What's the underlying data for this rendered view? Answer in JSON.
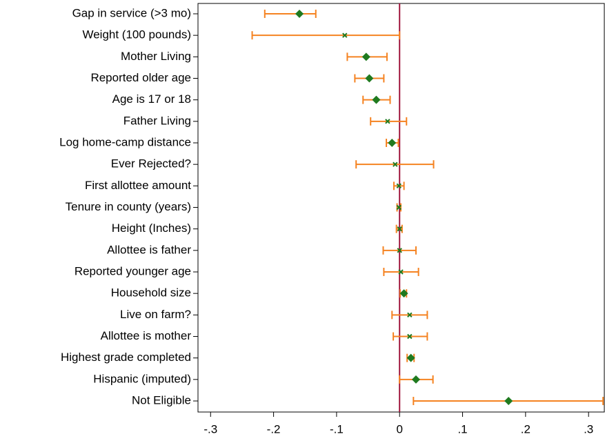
{
  "chart_data": {
    "type": "coefplot",
    "categories": [
      "Gap in service (>3 mo)",
      "Weight (100 pounds)",
      "Mother Living",
      "Reported older age",
      "Age is 17 or 18",
      "Father Living",
      "Log home-camp distance",
      "Ever Rejected?",
      "First allottee amount",
      "Tenure in county (years)",
      "Height (Inches)",
      "Allottee is father",
      "Reported younger age",
      "Household size",
      "Live on farm?",
      "Allottee is mother",
      "Highest grade completed",
      "Hispanic (imputed)",
      "Not Eligible"
    ],
    "values": [
      -0.159,
      -0.087,
      -0.053,
      -0.048,
      -0.037,
      -0.019,
      -0.012,
      -0.007,
      -0.001,
      -0.001,
      0.0,
      0.0,
      0.002,
      0.007,
      0.016,
      0.016,
      0.018,
      0.026,
      0.173
    ],
    "lower": [
      -0.214,
      -0.234,
      -0.083,
      -0.071,
      -0.058,
      -0.046,
      -0.021,
      -0.069,
      -0.009,
      -0.004,
      -0.005,
      -0.026,
      -0.025,
      0.001,
      -0.012,
      -0.01,
      0.012,
      0.0,
      0.022
    ],
    "upper": [
      -0.133,
      0.0,
      -0.02,
      -0.025,
      -0.015,
      0.011,
      -0.002,
      0.054,
      0.007,
      0.002,
      0.004,
      0.026,
      0.03,
      0.011,
      0.044,
      0.044,
      0.023,
      0.053,
      0.323
    ],
    "markers": [
      "diamond",
      "x",
      "diamond",
      "diamond",
      "diamond",
      "x",
      "diamond",
      "x",
      "x",
      "x",
      "x",
      "x",
      "x",
      "diamond",
      "x",
      "x",
      "diamond",
      "diamond",
      "diamond"
    ],
    "xlim": [
      -0.32,
      0.325
    ],
    "xticks": [
      {
        "value": -0.3,
        "label": "-.3"
      },
      {
        "value": -0.2,
        "label": "-.2"
      },
      {
        "value": -0.1,
        "label": "-.1"
      },
      0,
      {
        "value": 0.1,
        "label": ".1"
      },
      {
        "value": 0.2,
        "label": ".2"
      },
      {
        "value": 0.3,
        "label": ".3"
      }
    ],
    "xline": 0,
    "color": "#1f7a1f",
    "ci_color": "#f58220",
    "xline_color": "#a0163c"
  }
}
